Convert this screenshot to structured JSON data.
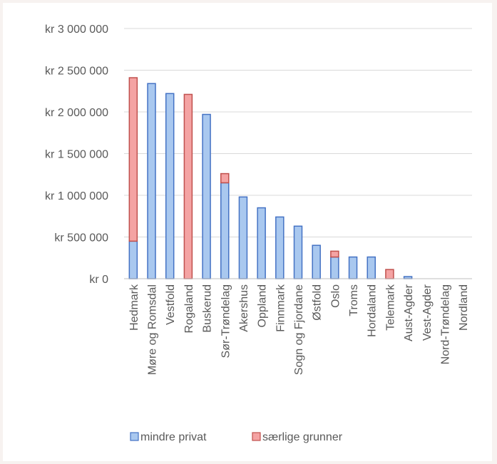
{
  "chart_data": {
    "type": "bar",
    "stacked": true,
    "categories": [
      "Hedmark",
      "Møre og Romsdal",
      "Vestfold",
      "Rogaland",
      "Buskerud",
      "Sør-Trøndelag",
      "Akershus",
      "Oppland",
      "Finnmark",
      "Sogn og Fjordane",
      "Østfold",
      "Oslo",
      "Troms",
      "Hordaland",
      "Telemark",
      "Aust-Agder",
      "Vest-Agder",
      "Nord-Trøndelag",
      "Nordland"
    ],
    "series": [
      {
        "name": "mindre privat",
        "color": "#a9c8ef",
        "edge": "#4472c4",
        "values": [
          450000,
          2340000,
          2220000,
          0,
          1970000,
          1150000,
          980000,
          850000,
          740000,
          630000,
          400000,
          260000,
          260000,
          260000,
          0,
          25000,
          0,
          0,
          0
        ]
      },
      {
        "name": "særlige grunner",
        "color": "#f4a3a3",
        "edge": "#c0504d",
        "values": [
          1960000,
          0,
          0,
          2210000,
          0,
          110000,
          0,
          0,
          0,
          0,
          0,
          70000,
          0,
          0,
          110000,
          0,
          0,
          0,
          0
        ]
      }
    ],
    "yticks": [
      "kr 0",
      "kr 500 000",
      "kr 1 000 000",
      "kr 1 500 000",
      "kr 2 000 000",
      "kr 2 500 000",
      "kr 3 000 000"
    ],
    "ylim": [
      0,
      3000000
    ],
    "grid": true,
    "legend_position": "bottom"
  }
}
